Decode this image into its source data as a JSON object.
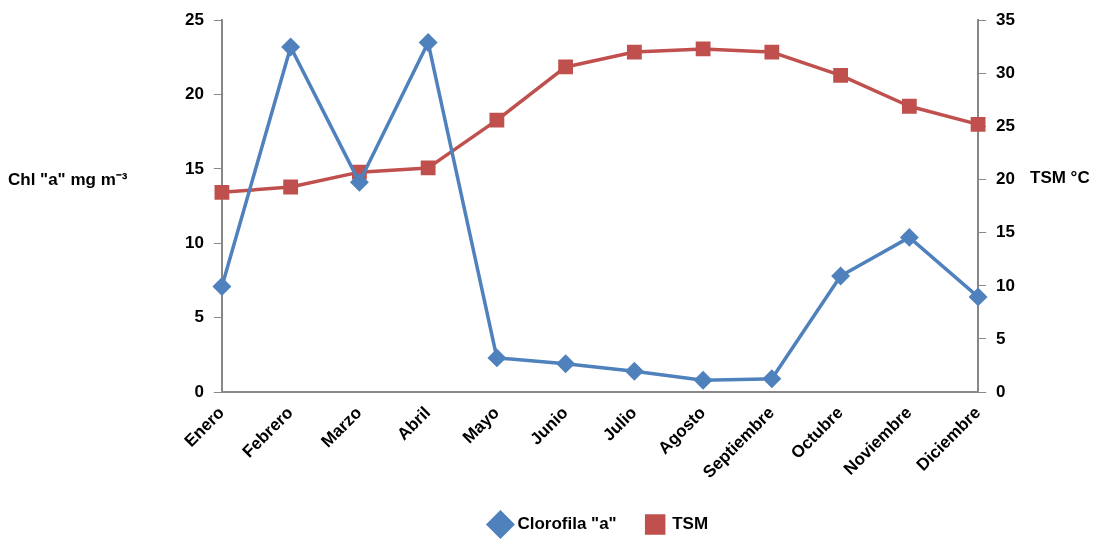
{
  "chart_data": {
    "type": "line",
    "categories": [
      "Enero",
      "Febrero",
      "Marzo",
      "Abril",
      "Mayo",
      "Junio",
      "Julio",
      "Agosto",
      "Septiembre",
      "Octubre",
      "Noviembre",
      "Diciembre"
    ],
    "series": [
      {
        "name": "Clorofila \"a\"",
        "color": "#4f81bd",
        "marker": "diamond",
        "values": [
          7.1,
          23.2,
          14.1,
          23.5,
          2.3,
          1.9,
          1.4,
          0.8,
          0.9,
          7.8,
          10.4,
          6.4
        ]
      },
      {
        "name": "TSM",
        "color": "#c0504d",
        "marker": "square",
        "axis": "y2",
        "values": [
          18.8,
          19.3,
          20.7,
          21.1,
          25.6,
          30.6,
          32.0,
          32.3,
          32.0,
          29.8,
          26.9,
          25.2
        ]
      }
    ],
    "ylabel": "Chl \"a\" mg m⁻³",
    "y2label": "TSM °C",
    "ylim": [
      0,
      25
    ],
    "yticks": [
      0,
      5,
      10,
      15,
      20,
      25
    ],
    "y2lim": [
      0,
      35
    ],
    "y2ticks": [
      0,
      5,
      10,
      15,
      20,
      25,
      30,
      35
    ],
    "grid": false,
    "legend": "bottom",
    "line_style": "solid"
  }
}
